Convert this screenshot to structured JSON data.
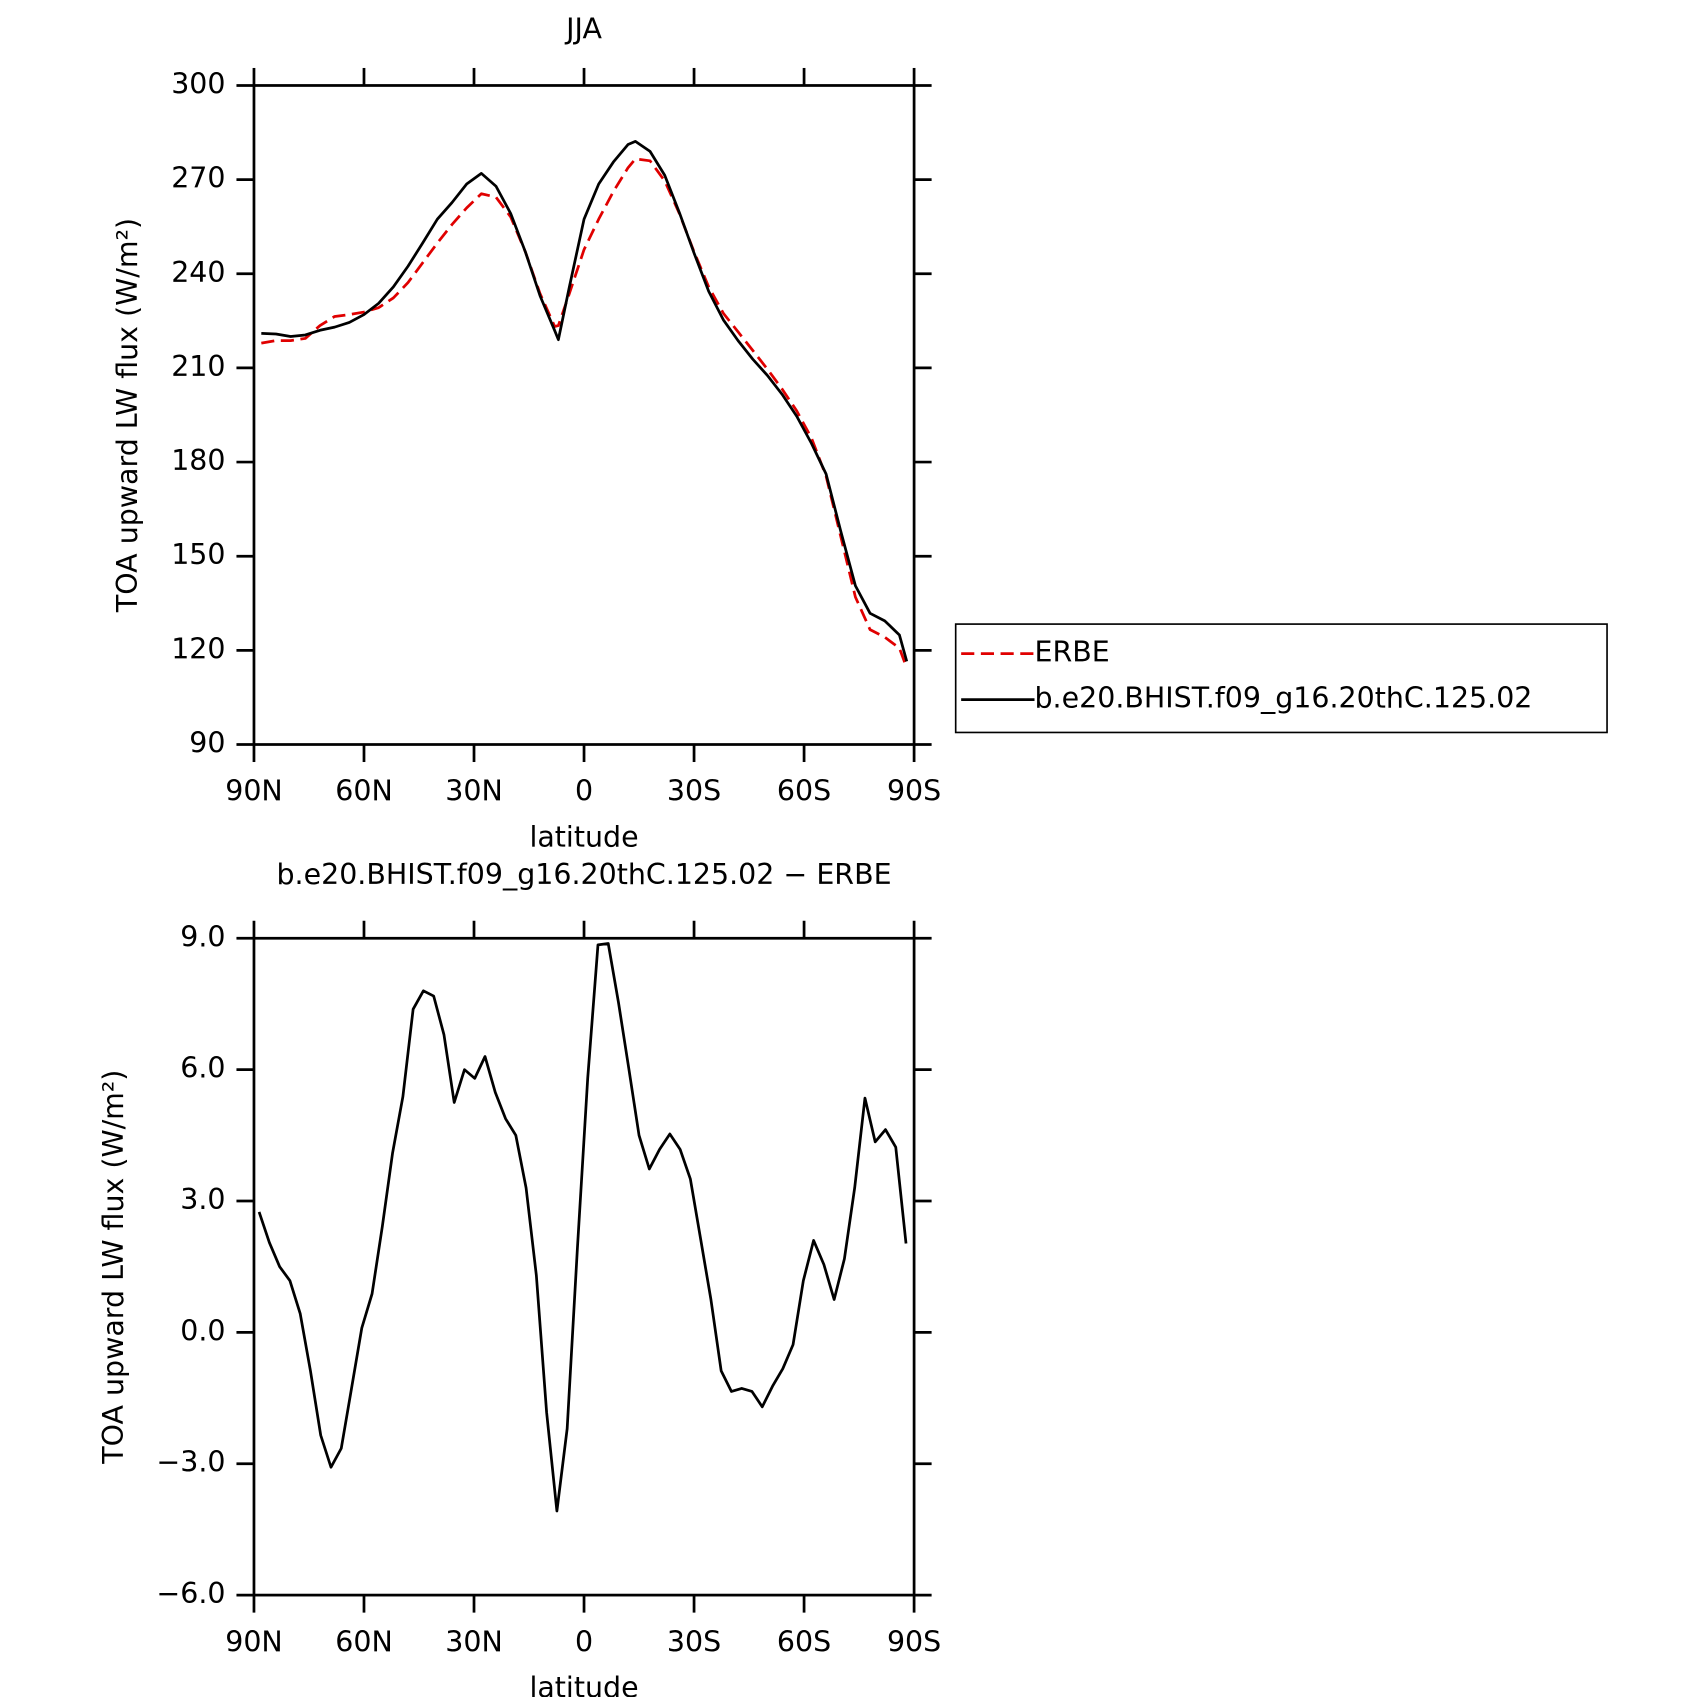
{
  "chart_data": [
    {
      "type": "line",
      "title": "JJA",
      "xlabel": "latitude",
      "ylabel": "TOA upward LW flux (W/m²)",
      "xlim": [
        90,
        -90
      ],
      "xticks": [
        {
          "value": 90,
          "label": "90N"
        },
        {
          "value": 60,
          "label": "60N"
        },
        {
          "value": 30,
          "label": "30N"
        },
        0,
        {
          "value": -30,
          "label": "30S"
        },
        {
          "value": -60,
          "label": "60S"
        },
        {
          "value": -90,
          "label": "90S"
        }
      ],
      "ylim": [
        90,
        300
      ],
      "yticks": [
        90,
        120,
        150,
        180,
        210,
        240,
        270,
        300
      ],
      "legend": "right",
      "x": [
        88,
        84,
        80,
        76,
        72,
        68,
        64,
        60,
        56,
        52,
        48,
        44,
        40,
        36,
        32,
        28,
        24,
        20,
        16,
        12,
        8,
        7,
        4,
        0,
        -4,
        -8,
        -12,
        -14,
        -18,
        -22,
        -26,
        -30,
        -34,
        -38,
        -42,
        -46,
        -50,
        -54,
        -58,
        -62,
        -66,
        -70,
        -74,
        -78,
        -82,
        -86,
        -88
      ],
      "series": [
        {
          "name": "ERBE",
          "color": "#e00000",
          "dashed": true,
          "values": [
            217.9,
            218.7,
            218.7,
            219.4,
            223.5,
            226.4,
            227,
            227.8,
            229.2,
            232.3,
            237.2,
            243.5,
            249.8,
            255.7,
            261,
            265.5,
            264.4,
            258.1,
            247,
            233.7,
            223.2,
            223.5,
            233.7,
            247.7,
            257.4,
            266.2,
            273.8,
            276.6,
            276,
            269.6,
            259.2,
            247,
            235.8,
            227.4,
            221.5,
            215.6,
            209.6,
            203.3,
            196.3,
            187.7,
            175.5,
            156.3,
            137,
            126.6,
            124.2,
            120.7,
            114.4
          ]
        },
        {
          "name": "b.e20.BHIST.f09_g16.20thC.125.02",
          "color": "#000000",
          "dashed": false,
          "values": [
            221,
            220.8,
            220,
            220.5,
            222,
            223,
            224.5,
            227,
            230.6,
            235.8,
            242.4,
            249.8,
            257.4,
            262.7,
            268.6,
            272,
            267.9,
            259.2,
            247,
            233,
            221.9,
            219,
            235.8,
            257.4,
            268.6,
            275.6,
            281.2,
            282.2,
            279,
            271.4,
            259.5,
            246.6,
            234.4,
            225.3,
            218.7,
            212.8,
            207.6,
            201.6,
            194.6,
            186,
            176.2,
            158,
            140.6,
            131.8,
            129.4,
            124.9,
            116.5
          ]
        }
      ]
    },
    {
      "type": "line",
      "title": "b.e20.BHIST.f09_g16.20thC.125.02 − ERBE",
      "xlabel": "latitude",
      "ylabel": "TOA upward LW flux (W/m²)",
      "xlim": [
        90,
        -90
      ],
      "xticks": [
        {
          "value": 90,
          "label": "90N"
        },
        {
          "value": 60,
          "label": "60N"
        },
        {
          "value": 30,
          "label": "30N"
        },
        0,
        {
          "value": -30,
          "label": "30S"
        },
        {
          "value": -60,
          "label": "60S"
        },
        {
          "value": -90,
          "label": "90S"
        }
      ],
      "ylim": [
        -6,
        9
      ],
      "yticks": [
        {
          "value": -6,
          "label": "−6.0"
        },
        {
          "value": -3,
          "label": "−3.0"
        },
        {
          "value": 0,
          "label": "0.0"
        },
        {
          "value": 3,
          "label": "3.0"
        },
        {
          "value": 6,
          "label": "6.0"
        },
        {
          "value": 9,
          "label": "9.0"
        }
      ],
      "color": "#000000",
      "x": [
        88.6,
        85.8,
        83,
        80.2,
        77.4,
        74.6,
        71.8,
        69,
        66.2,
        63.4,
        60.6,
        57.8,
        55,
        52.2,
        49.4,
        46.6,
        43.8,
        41,
        38.2,
        35.4,
        32.6,
        29.8,
        27,
        24.2,
        21.4,
        18.6,
        15.8,
        13,
        10.2,
        7.4,
        4.6,
        1.8,
        -1,
        -3.8,
        -6.6,
        -9.4,
        -12.2,
        -15,
        -17.8,
        -20.6,
        -23.4,
        -26.2,
        -29,
        -31.8,
        -34.6,
        -37.4,
        -40.2,
        -43,
        -45.8,
        -48.6,
        -51.4,
        -54.2,
        -57,
        -59.8,
        -62.6,
        -65.4,
        -68.2,
        -71,
        -73.8,
        -76.6,
        -79.4,
        -82.2,
        -85,
        -87.8
      ],
      "values": [
        2.75,
        2.05,
        1.5,
        1.18,
        0.43,
        -0.88,
        -2.35,
        -3.08,
        -2.65,
        -1.28,
        0.1,
        0.88,
        2.42,
        4.1,
        5.38,
        7.38,
        7.8,
        7.68,
        6.8,
        5.25,
        6.0,
        5.8,
        6.3,
        5.48,
        4.88,
        4.5,
        3.3,
        1.3,
        -1.83,
        -4.08,
        -2.2,
        1.93,
        5.8,
        8.85,
        8.88,
        7.53,
        6.03,
        4.5,
        3.73,
        4.18,
        4.53,
        4.18,
        3.5,
        2.13,
        0.75,
        -0.88,
        -1.35,
        -1.28,
        -1.35,
        -1.7,
        -1.23,
        -0.83,
        -0.28,
        1.18,
        2.1,
        1.55,
        0.75,
        1.68,
        3.3,
        5.35,
        4.35,
        4.63,
        4.23,
        2.03
      ]
    }
  ]
}
